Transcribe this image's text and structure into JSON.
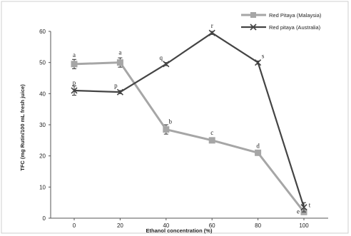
{
  "chart_data": {
    "type": "line",
    "title": "",
    "xlabel": "Ethanol concentration (%)",
    "ylabel": "TFC (mg Rutin/100 mL fresh juice)",
    "x": [
      0,
      20,
      40,
      60,
      80,
      100
    ],
    "xticks": [
      "0",
      "20",
      "40",
      "60",
      "80",
      "100"
    ],
    "yticks": [
      "0",
      "10",
      "20",
      "30",
      "40",
      "50",
      "60"
    ],
    "ylim": [
      0,
      60
    ],
    "grid": false,
    "legend_position": "top-right",
    "series": [
      {
        "name": "Red Pitaya (Malaysia)",
        "color": "#a6a6a6",
        "marker": "square",
        "values": [
          49.5,
          50,
          28.5,
          25,
          21,
          2
        ],
        "errors": [
          1.5,
          1.5,
          1.5,
          0.5,
          0.5,
          0.5
        ],
        "labels": [
          "a",
          "a",
          "b",
          "c",
          "d",
          "e"
        ]
      },
      {
        "name": "Red pitaya (Australia)",
        "color": "#444444",
        "marker": "x",
        "values": [
          41,
          40.5,
          49.5,
          59.5,
          50,
          3.5
        ],
        "errors": [
          1.5,
          0.5,
          0.5,
          0.5,
          0.5,
          1.5
        ],
        "labels": [
          "p",
          "p",
          "q",
          "r",
          "s",
          "t"
        ]
      }
    ]
  }
}
